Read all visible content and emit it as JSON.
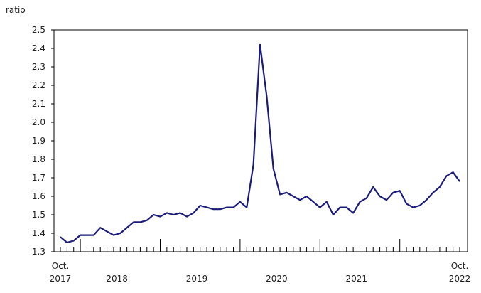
{
  "chart_data": {
    "type": "line",
    "y_label": "ratio",
    "color": "#1b1b7a",
    "x": [
      "2017-10",
      "2017-11",
      "2017-12",
      "2018-01",
      "2018-02",
      "2018-03",
      "2018-04",
      "2018-05",
      "2018-06",
      "2018-07",
      "2018-08",
      "2018-09",
      "2018-10",
      "2018-11",
      "2018-12",
      "2019-01",
      "2019-02",
      "2019-03",
      "2019-04",
      "2019-05",
      "2019-06",
      "2019-07",
      "2019-08",
      "2019-09",
      "2019-10",
      "2019-11",
      "2019-12",
      "2020-01",
      "2020-02",
      "2020-03",
      "2020-04",
      "2020-05",
      "2020-06",
      "2020-07",
      "2020-08",
      "2020-09",
      "2020-10",
      "2020-11",
      "2020-12",
      "2021-01",
      "2021-02",
      "2021-03",
      "2021-04",
      "2021-05",
      "2021-06",
      "2021-07",
      "2021-08",
      "2021-09",
      "2021-10",
      "2021-11",
      "2021-12",
      "2022-01",
      "2022-02",
      "2022-03",
      "2022-04",
      "2022-05",
      "2022-06",
      "2022-07",
      "2022-08",
      "2022-09",
      "2022-10"
    ],
    "values": [
      1.38,
      1.35,
      1.36,
      1.39,
      1.39,
      1.39,
      1.43,
      1.41,
      1.39,
      1.4,
      1.43,
      1.46,
      1.46,
      1.47,
      1.5,
      1.49,
      1.51,
      1.5,
      1.51,
      1.49,
      1.51,
      1.55,
      1.54,
      1.53,
      1.53,
      1.54,
      1.54,
      1.57,
      1.54,
      1.77,
      2.42,
      2.14,
      1.75,
      1.61,
      1.62,
      1.6,
      1.58,
      1.6,
      1.57,
      1.54,
      1.57,
      1.5,
      1.54,
      1.54,
      1.51,
      1.57,
      1.59,
      1.65,
      1.6,
      1.58,
      1.62,
      1.63,
      1.56,
      1.54,
      1.55,
      1.58,
      1.62,
      1.65,
      1.71,
      1.73,
      1.68
    ],
    "x_tick_labels": [
      {
        "value": "2017-10",
        "label": "Oct. 2017"
      },
      {
        "value": "2018",
        "label": "2018"
      },
      {
        "value": "2019",
        "label": "2019"
      },
      {
        "value": "2020",
        "label": "2020"
      },
      {
        "value": "2021",
        "label": "2021"
      },
      {
        "value": "2022-10",
        "label": "Oct. 2022"
      }
    ],
    "ylim": [
      1.3,
      2.5
    ],
    "yticks": [
      1.3,
      1.4,
      1.5,
      1.6,
      1.7,
      1.8,
      1.9,
      {
        "value": 2,
        "label": "2.0"
      },
      2.1,
      2.2,
      2.3,
      2.4,
      2.5
    ],
    "grid": false
  }
}
